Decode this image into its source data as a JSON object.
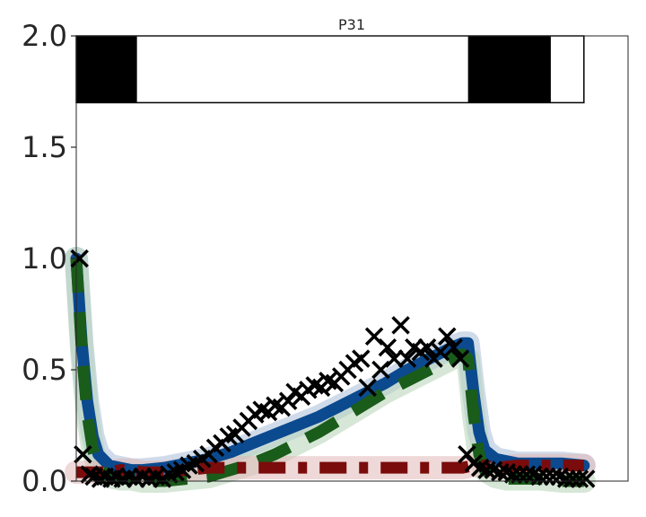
{
  "chart_data": {
    "type": "line",
    "title": "P31",
    "xlabel": "",
    "ylabel": "",
    "xlim": [
      0,
      50
    ],
    "ylim": [
      0,
      2.0
    ],
    "yticks": [
      {
        "value": 0.0,
        "label": "0.0"
      },
      {
        "value": 0.5,
        "label": "0.5"
      },
      {
        "value": 1.0,
        "label": "1.0"
      },
      {
        "value": 1.5,
        "label": "1.5"
      },
      {
        "value": 2.0,
        "label": "2.0"
      }
    ],
    "grid": false,
    "light_bar": {
      "y_range": [
        1.7,
        2.0
      ],
      "x_range": [
        0,
        46
      ],
      "dark_periods": [
        [
          0,
          5.5
        ],
        [
          35.5,
          43
        ]
      ]
    },
    "series": [
      {
        "style": "solid",
        "color": "#0b4a8f",
        "band_color": "#a9bed8",
        "x": [
          0,
          0.5,
          1,
          1.5,
          2,
          3,
          4,
          5,
          6,
          8,
          10,
          12,
          14,
          16,
          18,
          20,
          22,
          24,
          26,
          28,
          30,
          32,
          34,
          35,
          35.5,
          36,
          36.5,
          37,
          38,
          39,
          40,
          42,
          44,
          46
        ],
        "y": [
          1.0,
          0.62,
          0.36,
          0.2,
          0.12,
          0.07,
          0.06,
          0.05,
          0.05,
          0.06,
          0.08,
          0.1,
          0.13,
          0.17,
          0.21,
          0.25,
          0.29,
          0.34,
          0.39,
          0.44,
          0.5,
          0.55,
          0.6,
          0.62,
          0.62,
          0.4,
          0.22,
          0.14,
          0.1,
          0.09,
          0.08,
          0.08,
          0.08,
          0.07
        ]
      },
      {
        "style": "dashed",
        "color": "#1a5c1a",
        "band_color": "#b7d3b7",
        "x": [
          0,
          0.5,
          1,
          1.5,
          2,
          3,
          4,
          5,
          6,
          8,
          10,
          12,
          14,
          16,
          18,
          20,
          22,
          24,
          26,
          28,
          30,
          32,
          34,
          35,
          35.5,
          36,
          36.5,
          37,
          38,
          39,
          40,
          42,
          44,
          46
        ],
        "y": [
          1.0,
          0.58,
          0.3,
          0.14,
          0.06,
          0.02,
          0.01,
          0.01,
          0.0,
          0.0,
          0.01,
          0.02,
          0.05,
          0.08,
          0.12,
          0.17,
          0.22,
          0.28,
          0.34,
          0.4,
          0.45,
          0.5,
          0.55,
          0.57,
          0.55,
          0.3,
          0.12,
          0.05,
          0.02,
          0.01,
          0.01,
          0.01,
          0.0,
          0.0
        ]
      },
      {
        "style": "dashdot",
        "color": "#7a0c0c",
        "band_color": "#e2b8b8",
        "x": [
          0,
          1,
          2,
          3,
          4,
          5,
          6,
          8,
          10,
          12,
          14,
          16,
          18,
          20,
          22,
          24,
          26,
          28,
          30,
          32,
          34,
          35,
          36,
          37,
          38,
          40,
          42,
          44,
          46
        ],
        "y": [
          0.04,
          0.04,
          0.04,
          0.04,
          0.05,
          0.05,
          0.04,
          0.04,
          0.05,
          0.06,
          0.06,
          0.06,
          0.06,
          0.06,
          0.06,
          0.06,
          0.06,
          0.06,
          0.06,
          0.06,
          0.06,
          0.06,
          0.07,
          0.07,
          0.06,
          0.07,
          0.07,
          0.07,
          0.07
        ]
      }
    ],
    "scatter": {
      "marker": "x",
      "color": "#000000",
      "x": [
        0.3,
        0.6,
        1.2,
        1.6,
        2.2,
        2.6,
        3.2,
        3.6,
        4.2,
        4.8,
        5.4,
        6.0,
        6.6,
        7.2,
        7.8,
        8.4,
        9.0,
        9.6,
        10.2,
        10.8,
        11.4,
        12.0,
        12.6,
        13.2,
        13.8,
        14.4,
        15.0,
        15.6,
        16.2,
        16.8,
        17.4,
        18.0,
        18.6,
        19.2,
        19.8,
        20.4,
        21.0,
        21.6,
        22.2,
        22.8,
        23.4,
        24.0,
        24.6,
        25.2,
        25.8,
        26.4,
        27.0,
        27.6,
        28.2,
        28.8,
        29.4,
        30.0,
        30.6,
        31.2,
        31.8,
        32.4,
        33.0,
        33.6,
        34.2,
        34.8,
        35.4,
        36.0,
        36.6,
        37.2,
        37.8,
        38.4,
        39.0,
        39.6,
        40.2,
        40.8,
        41.4,
        42.0,
        42.6,
        43.2,
        43.8,
        44.4,
        45.0,
        45.6,
        46.2
      ],
      "y": [
        1.0,
        0.12,
        0.03,
        0.02,
        0.01,
        0.02,
        0.01,
        0.02,
        0.01,
        0.02,
        0.01,
        0.02,
        0.01,
        0.02,
        0.01,
        0.03,
        0.04,
        0.05,
        0.07,
        0.08,
        0.1,
        0.12,
        0.15,
        0.17,
        0.2,
        0.21,
        0.24,
        0.27,
        0.3,
        0.32,
        0.31,
        0.34,
        0.33,
        0.36,
        0.4,
        0.38,
        0.41,
        0.43,
        0.42,
        0.45,
        0.44,
        0.47,
        0.5,
        0.53,
        0.55,
        0.42,
        0.65,
        0.5,
        0.6,
        0.55,
        0.7,
        0.55,
        0.6,
        0.58,
        0.6,
        0.55,
        0.58,
        0.65,
        0.6,
        0.55,
        0.12,
        0.08,
        0.06,
        0.05,
        0.05,
        0.04,
        0.04,
        0.03,
        0.03,
        0.03,
        0.03,
        0.02,
        0.02,
        0.02,
        0.02,
        0.01,
        0.01,
        0.01,
        0.01
      ]
    }
  }
}
